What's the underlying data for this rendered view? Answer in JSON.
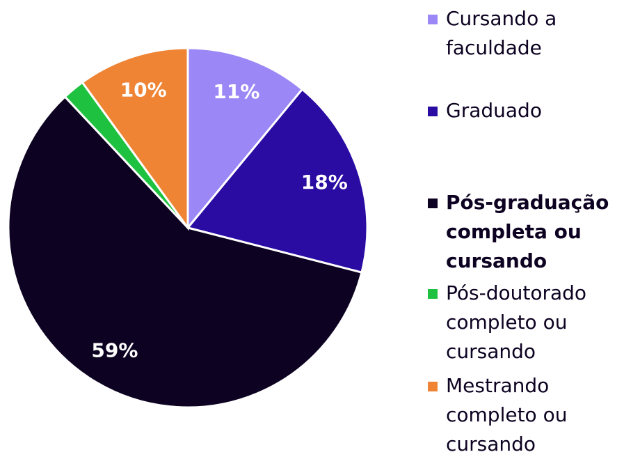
{
  "chart_data": {
    "type": "pie",
    "categories": [
      "Cursando a faculdade",
      "Graduado",
      "Pós-graduação completa ou cursando",
      "Pós-doutorado completo ou cursando",
      "Mestrando completo ou cursando"
    ],
    "values": [
      11,
      18,
      59,
      2,
      10
    ],
    "value_labels": [
      "11%",
      "18%",
      "59%",
      null,
      "10%"
    ],
    "colors": [
      "#9b87f5",
      "#2a0ca3",
      "#0d0221",
      "#1fc240",
      "#ef8434"
    ],
    "highlight_index": 2,
    "legend": "right"
  }
}
